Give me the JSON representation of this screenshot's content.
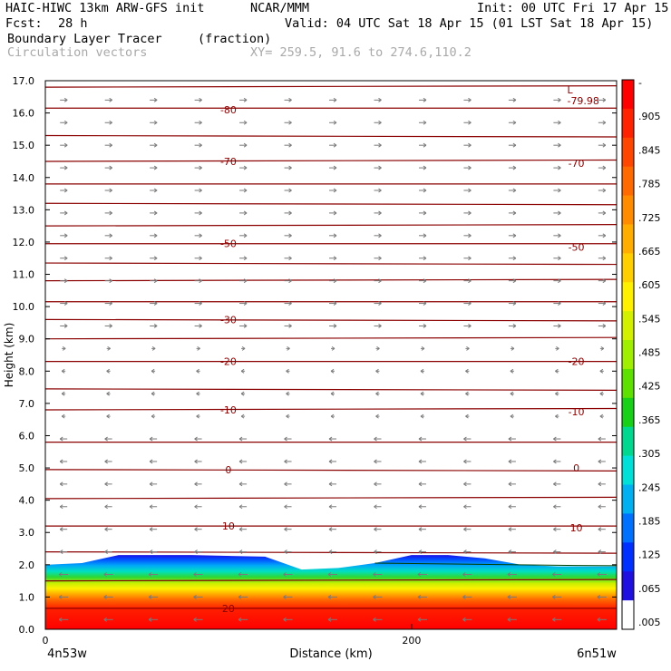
{
  "header": {
    "model": "HAIC-HIWC 13km ARW-GFS init",
    "org": "NCAR/MMM",
    "init": "Init: 00 UTC Fri 17 Apr 15",
    "fcst_label": "Fcst:",
    "fcst_value": "28 h",
    "valid": "Valid: 04 UTC Sat 18 Apr 15 (01 LST Sat 18 Apr 15)",
    "field_name": "Boundary Layer Tracer",
    "field_units": "(fraction)",
    "overlay": "Circulation vectors",
    "xy": "XY= 259.5, 91.6 to 274.6,110.2"
  },
  "chart_data": {
    "type": "heatmap",
    "title": "Boundary Layer Tracer",
    "ylabel": "Height (km)",
    "xlabel": "Distance (km)",
    "ylim": [
      0,
      17
    ],
    "xlim": [
      0,
      312
    ],
    "yticks": [
      "0.0",
      "1.0",
      "2.0",
      "3.0",
      "4.0",
      "5.0",
      "6.0",
      "7.0",
      "8.0",
      "9.0",
      "10.0",
      "11.0",
      "12.0",
      "13.0",
      "14.0",
      "15.0",
      "16.0",
      "17.0"
    ],
    "xticks": [
      "0",
      "200"
    ],
    "x_endpoints": [
      "4n53w",
      "6n51w"
    ],
    "colorbar": {
      "labels": [
        "-",
        ".905",
        ".845",
        ".785",
        ".725",
        ".665",
        ".605",
        ".545",
        ".485",
        ".425",
        ".365",
        ".305",
        ".245",
        ".185",
        ".125",
        ".065",
        ".005"
      ],
      "colors": [
        "#ff0000",
        "#ff2200",
        "#ff4600",
        "#ff6a00",
        "#ff8c00",
        "#ffae00",
        "#ffcf00",
        "#fff000",
        "#d2f000",
        "#a0ee00",
        "#5ee000",
        "#18d018",
        "#00d890",
        "#00e0d8",
        "#00b0f0",
        "#0070ff",
        "#0030ff",
        "#2010e0",
        "#ffffff"
      ]
    },
    "boundary_layer_top_km": {
      "x": [
        0,
        20,
        40,
        80,
        120,
        140,
        160,
        180,
        200,
        220,
        240,
        260,
        280,
        300,
        312
      ],
      "y": [
        2.0,
        2.05,
        2.3,
        2.3,
        2.25,
        1.85,
        1.9,
        2.05,
        2.3,
        2.3,
        2.2,
        2.0,
        1.95,
        1.95,
        1.95
      ]
    },
    "temperature_contours_C": {
      "labels": [
        {
          "text": "-80",
          "x": 100,
          "y": 16.1
        },
        {
          "text": "-70",
          "x": 100,
          "y": 14.5
        },
        {
          "text": "-70",
          "x": 290,
          "y": 14.45
        },
        {
          "text": "-50",
          "x": 100,
          "y": 11.95
        },
        {
          "text": "-50",
          "x": 290,
          "y": 11.85
        },
        {
          "text": "-30",
          "x": 100,
          "y": 9.6
        },
        {
          "text": "-20",
          "x": 100,
          "y": 8.3
        },
        {
          "text": "-20",
          "x": 290,
          "y": 8.3
        },
        {
          "text": "-10",
          "x": 100,
          "y": 6.8
        },
        {
          "text": "-10",
          "x": 290,
          "y": 6.75
        },
        {
          "text": "0",
          "x": 100,
          "y": 4.95
        },
        {
          "text": "0",
          "x": 290,
          "y": 5.0
        },
        {
          "text": "10",
          "x": 100,
          "y": 3.2
        },
        {
          "text": "10",
          "x": 290,
          "y": 3.15
        },
        {
          "text": "20",
          "x": 100,
          "y": 0.65
        }
      ],
      "min_label": {
        "mark": "L",
        "value": "-79.98",
        "x": 285,
        "y": 16.5
      },
      "level_heights_km": [
        16.8,
        16.15,
        15.3,
        14.5,
        13.8,
        13.2,
        12.5,
        11.95,
        11.35,
        10.8,
        10.15,
        9.6,
        9.0,
        8.3,
        7.45,
        6.8,
        5.8,
        4.95,
        4.05,
        3.2,
        2.4,
        1.5,
        0.65
      ]
    },
    "vectors": {
      "upper_direction": "east",
      "lower_direction": "west",
      "reversal_height_km": 8.0
    }
  }
}
